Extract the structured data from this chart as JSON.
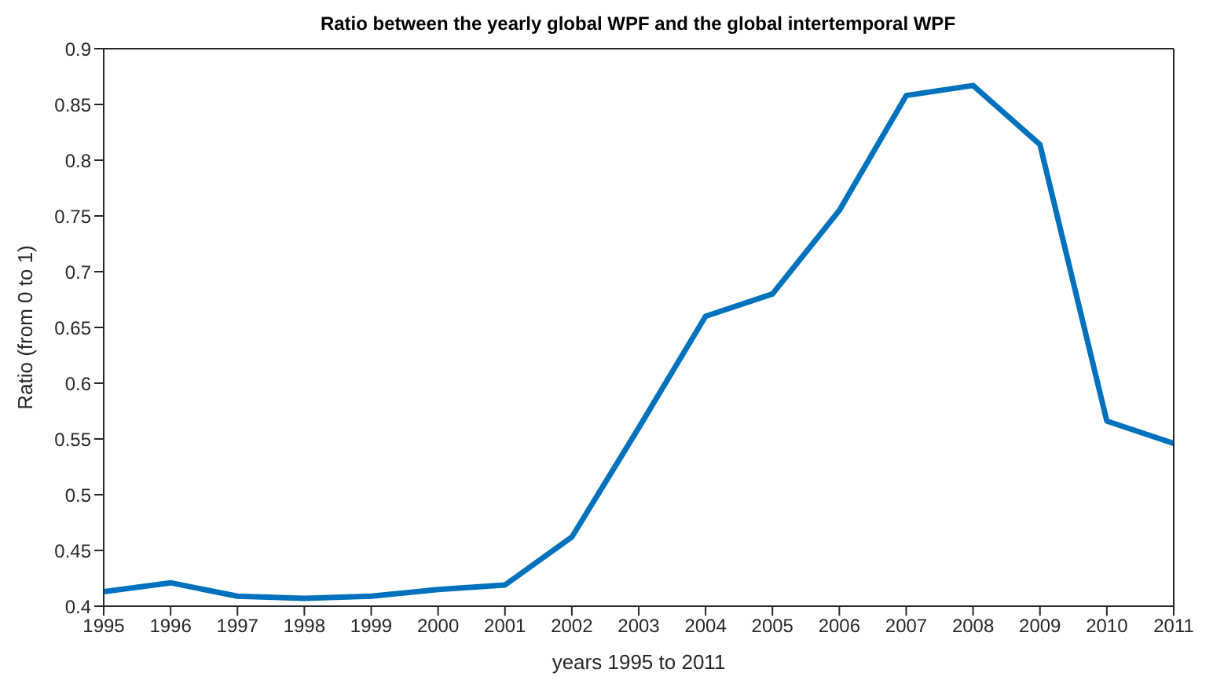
{
  "chart_data": {
    "type": "line",
    "title": "Ratio between the yearly global WPF and the global intertemporal WPF",
    "xlabel": "years 1995 to 2011",
    "ylabel": "Ratio (from 0 to 1)",
    "x": [
      1995,
      1996,
      1997,
      1998,
      1999,
      2000,
      2001,
      2002,
      2003,
      2004,
      2005,
      2006,
      2007,
      2008,
      2009,
      2010,
      2011
    ],
    "series": [
      {
        "color": "#0072bd",
        "values": [
          0.413,
          0.421,
          0.409,
          0.407,
          0.409,
          0.415,
          0.419,
          0.462,
          0.56,
          0.66,
          0.68,
          0.755,
          0.858,
          0.867,
          0.814,
          0.566,
          0.546
        ]
      }
    ],
    "xlim": [
      1995,
      2011
    ],
    "xticks": [
      1995,
      1996,
      1997,
      1998,
      1999,
      2000,
      2001,
      2002,
      2003,
      2004,
      2005,
      2006,
      2007,
      2008,
      2009,
      2010,
      2011
    ],
    "ylim": [
      0.4,
      0.9
    ],
    "yticks": [
      0.4,
      0.45,
      0.5,
      0.55,
      0.6,
      0.65,
      0.7,
      0.75,
      0.8,
      0.85,
      0.9
    ],
    "grid": false,
    "legend": false,
    "marker": "none",
    "line_style": "solid"
  }
}
